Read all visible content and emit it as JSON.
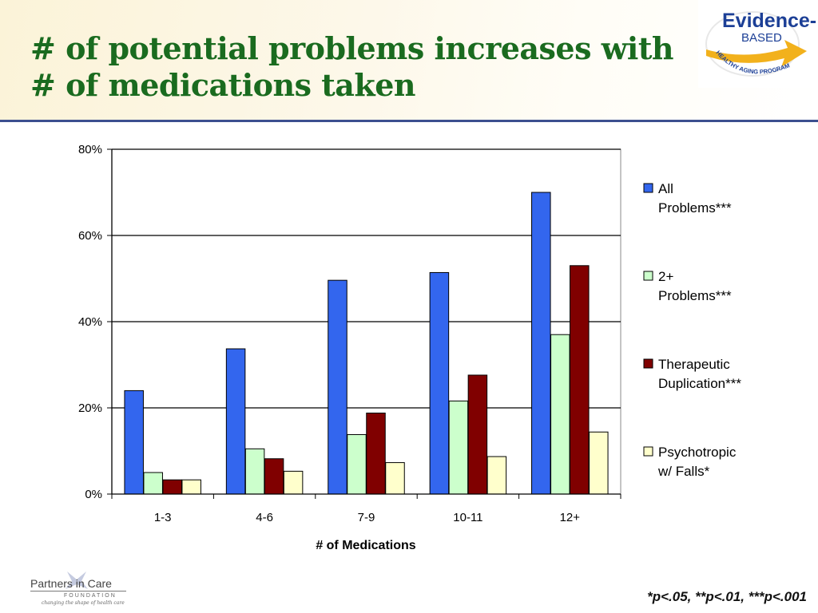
{
  "slide": {
    "title_line1": "# of potential problems increases with",
    "title_line2": "# of medications taken",
    "footnote": "*p<.05, **p<.01, ***p<.001",
    "colors": {
      "title": "#1a6b1f",
      "rule": "#3c4f8f"
    }
  },
  "top_logo": {
    "line1": "Evidence-",
    "line2": "BASED",
    "arc_text": "HEALTHY AGING PROGRAM",
    "colors": {
      "text": "#1c3f96",
      "arrow": "#f2b11c"
    }
  },
  "bottom_logo": {
    "name": "Partners in Care",
    "sub": "FOUNDATION",
    "tagline": "changing the shape of health care"
  },
  "chart_data": {
    "type": "bar",
    "title": "",
    "xlabel": "# of Medications",
    "ylabel": "",
    "ylim": [
      0,
      80
    ],
    "yticks": [
      0,
      20,
      40,
      60,
      80
    ],
    "ytick_labels": [
      "0%",
      "20%",
      "40%",
      "60%",
      "80%"
    ],
    "grid": true,
    "legend_position": "right",
    "categories": [
      "1-3",
      "4-6",
      "7-9",
      "10-11",
      "12+"
    ],
    "series": [
      {
        "name": "All Problems***",
        "legend_lines": [
          "All",
          "Problems***"
        ],
        "color": "#3366ee",
        "values": [
          24,
          33.7,
          49.6,
          51.4,
          70
        ]
      },
      {
        "name": "2+ Problems***",
        "legend_lines": [
          "2+",
          "Problems***"
        ],
        "color": "#ccffcc",
        "values": [
          5,
          10.5,
          13.8,
          21.6,
          37
        ]
      },
      {
        "name": "Therapeutic Duplication***",
        "legend_lines": [
          "Therapeutic",
          "Duplication***"
        ],
        "color": "#800000",
        "values": [
          3.3,
          8.2,
          18.8,
          27.6,
          53
        ]
      },
      {
        "name": "Psychotropic w/ Falls*",
        "legend_lines": [
          "Psychotropic",
          "w/ Falls*"
        ],
        "color": "#ffffcc",
        "values": [
          3.3,
          5.3,
          7.3,
          8.7,
          14.4
        ]
      }
    ]
  }
}
